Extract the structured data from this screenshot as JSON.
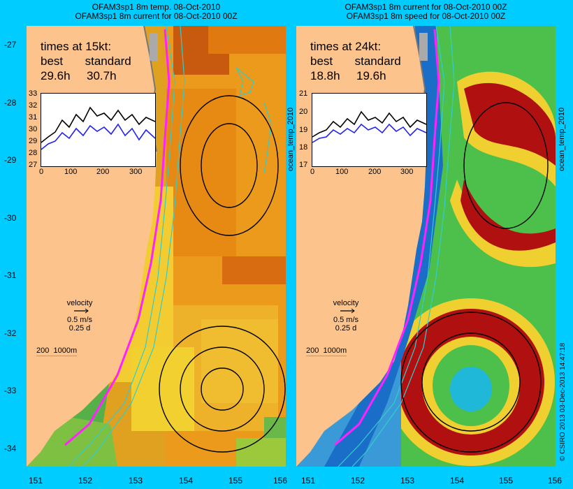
{
  "titles": {
    "left_line1": "OFAM3sp1 8m temp. 08-Oct-2010",
    "left_line2": "OFAM3sp1 8m current for 08-Oct-2010 00Z",
    "right_line1": "OFAM3sp1 8m current for 08-Oct-2010 00Z",
    "right_line2": "OFAM3sp1 8m speed for 08-Oct-2010 00Z"
  },
  "y_ticks": [
    "-27",
    "-28",
    "-29",
    "-30",
    "-31",
    "-32",
    "-33",
    "-34"
  ],
  "x_ticks": [
    "151",
    "152",
    "153",
    "154",
    "155",
    "156"
  ],
  "side_labels": {
    "left": "ocean_temp_2010",
    "right": "ocean_temp_2010"
  },
  "credit": "© CSIRO 2013   03-Dec-2013 14:47:18",
  "left_panel": {
    "times_title": "times at 15kt:",
    "col_best": "best",
    "col_standard": "standard",
    "best_value": "29.6h",
    "standard_value": "30.7h",
    "inset_y_ticks": [
      "33",
      "32",
      "31",
      "30",
      "29",
      "28",
      "27"
    ],
    "inset_x_ticks": [
      "0",
      "100",
      "200",
      "300"
    ]
  },
  "right_panel": {
    "times_title": "times at 24kt:",
    "col_best": "best",
    "col_standard": "standard",
    "best_value": "18.8h",
    "standard_value": "19.6h",
    "inset_y_ticks": [
      "21",
      "20",
      "19",
      "18",
      "17"
    ],
    "inset_x_ticks": [
      "0",
      "100",
      "200",
      "300"
    ]
  },
  "velocity_legend": {
    "label": "velocity",
    "speed": "0.5 m/s",
    "time": "0.25 d"
  },
  "depth_legend": {
    "a": "200",
    "b": "1000m"
  },
  "colors": {
    "background": "#00ccff",
    "land": "#fcc48c",
    "route_best": "#ff22ff",
    "isobath": "#33cccc",
    "series_black": "#000000",
    "series_blue": "#2222ee"
  }
}
